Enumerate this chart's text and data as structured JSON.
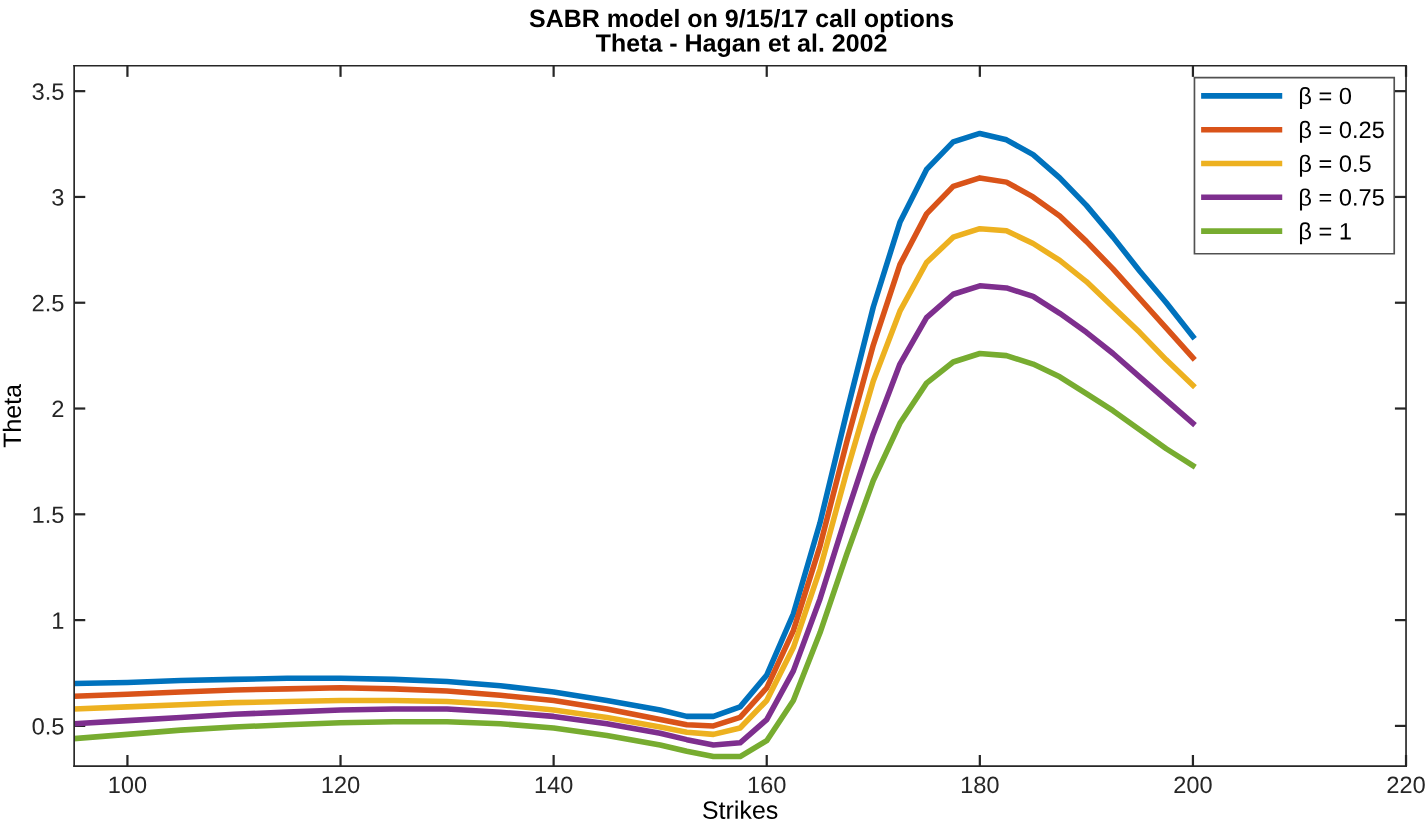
{
  "chart_data": {
    "type": "line",
    "title": "SABR model on 9/15/17 call options",
    "subtitle": "Theta - Hagan et al. 2002",
    "xlabel": "Strikes",
    "ylabel": "Theta",
    "x": [
      95,
      100,
      105,
      110,
      115,
      120,
      125,
      130,
      135,
      140,
      145,
      150,
      152.5,
      155,
      157.5,
      160,
      162.5,
      165,
      167.5,
      170,
      172.5,
      175,
      177.5,
      180,
      182.5,
      185,
      187.5,
      190,
      192.5,
      195,
      197.5,
      200
    ],
    "series": [
      {
        "name": "β = 0",
        "color": "#0072bd",
        "values": [
          0.7,
          0.705,
          0.715,
          0.72,
          0.725,
          0.725,
          0.72,
          0.71,
          0.69,
          0.66,
          0.62,
          0.575,
          0.545,
          0.545,
          0.59,
          0.74,
          1.03,
          1.46,
          1.98,
          2.48,
          2.88,
          3.13,
          3.26,
          3.3,
          3.27,
          3.2,
          3.09,
          2.96,
          2.81,
          2.65,
          2.5,
          2.34
        ]
      },
      {
        "name": "β = 0.25",
        "color": "#d95319",
        "values": [
          0.64,
          0.65,
          0.66,
          0.67,
          0.675,
          0.68,
          0.675,
          0.665,
          0.645,
          0.62,
          0.58,
          0.53,
          0.505,
          0.5,
          0.54,
          0.68,
          0.95,
          1.35,
          1.84,
          2.3,
          2.68,
          2.92,
          3.05,
          3.09,
          3.07,
          3.0,
          2.91,
          2.79,
          2.66,
          2.52,
          2.38,
          2.24
        ]
      },
      {
        "name": "β = 0.5",
        "color": "#edb120",
        "values": [
          0.58,
          0.59,
          0.6,
          0.61,
          0.615,
          0.62,
          0.62,
          0.615,
          0.6,
          0.575,
          0.54,
          0.495,
          0.47,
          0.46,
          0.49,
          0.62,
          0.87,
          1.24,
          1.7,
          2.13,
          2.46,
          2.69,
          2.81,
          2.85,
          2.84,
          2.78,
          2.7,
          2.6,
          2.48,
          2.36,
          2.23,
          2.11
        ]
      },
      {
        "name": "β = 0.75",
        "color": "#7e2f8e",
        "values": [
          0.51,
          0.525,
          0.54,
          0.555,
          0.565,
          0.575,
          0.58,
          0.58,
          0.565,
          0.545,
          0.51,
          0.465,
          0.435,
          0.41,
          0.42,
          0.53,
          0.76,
          1.1,
          1.5,
          1.88,
          2.21,
          2.43,
          2.54,
          2.58,
          2.57,
          2.53,
          2.45,
          2.36,
          2.26,
          2.15,
          2.04,
          1.93
        ]
      },
      {
        "name": "β = 1",
        "color": "#77ac30",
        "values": [
          0.44,
          0.46,
          0.48,
          0.495,
          0.505,
          0.515,
          0.52,
          0.52,
          0.51,
          0.49,
          0.455,
          0.41,
          0.38,
          0.355,
          0.355,
          0.43,
          0.62,
          0.94,
          1.31,
          1.66,
          1.93,
          2.12,
          2.22,
          2.26,
          2.25,
          2.21,
          2.15,
          2.07,
          1.99,
          1.9,
          1.81,
          1.73
        ]
      }
    ],
    "xlim": [
      95,
      220
    ],
    "xticks": [
      100,
      120,
      140,
      160,
      180,
      200,
      220
    ],
    "ylim": [
      0.31,
      3.62
    ],
    "yticks": [
      0.5,
      1,
      1.5,
      2,
      2.5,
      3,
      3.5
    ],
    "grid": false,
    "legend": "top right",
    "marker": "none",
    "line_style": "solid"
  }
}
